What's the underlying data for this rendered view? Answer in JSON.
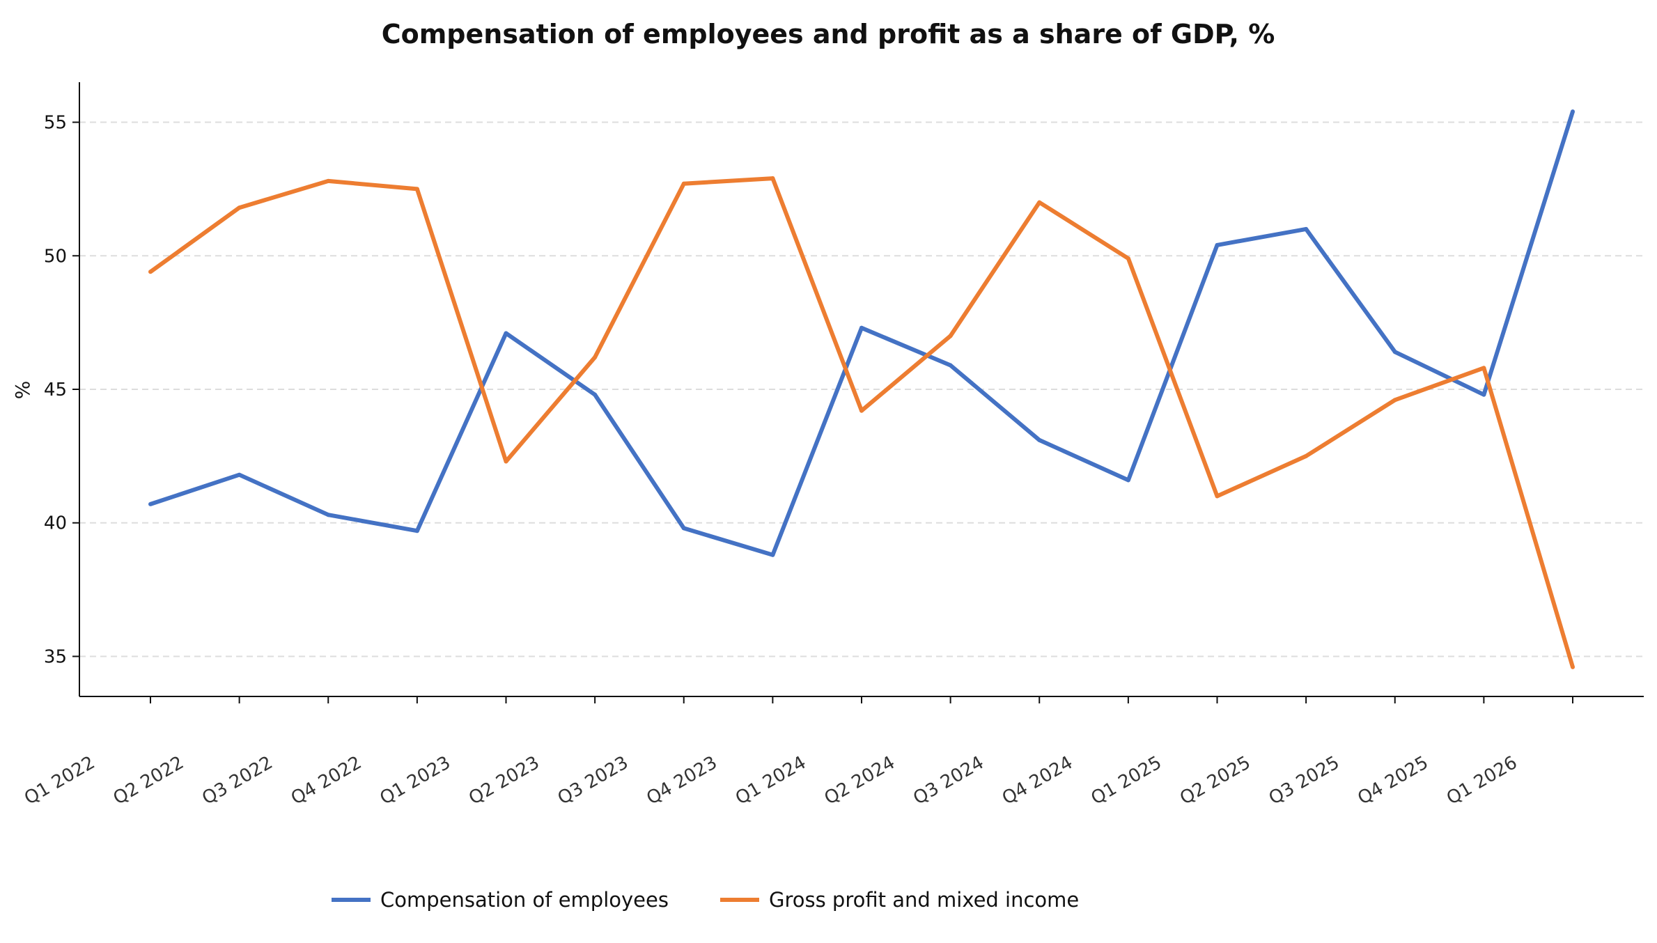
{
  "chart_data": {
    "type": "line",
    "title": "Compensation of employees and profit as a share of GDP, %",
    "xlabel": "",
    "ylabel": "%",
    "categories": [
      "Q1 2022",
      "Q2 2022",
      "Q3 2022",
      "Q4 2022",
      "Q1 2023",
      "Q2 2023",
      "Q3 2023",
      "Q4 2023",
      "Q1 2024",
      "Q2 2024",
      "Q3 2024",
      "Q4 2024",
      "Q1 2025",
      "Q2 2025",
      "Q3 2025",
      "Q4 2025",
      "Q1 2026"
    ],
    "ylim": [
      33.5,
      56.5
    ],
    "yticks": [
      35,
      40,
      45,
      50,
      55
    ],
    "grid": "horizontal dashed",
    "legend_position": "bottom-center",
    "series": [
      {
        "name": "Compensation of employees",
        "color": "#4472c4",
        "values": [
          40.7,
          41.8,
          40.3,
          39.7,
          47.1,
          44.8,
          39.8,
          38.8,
          47.3,
          45.9,
          43.1,
          41.6,
          50.4,
          51.0,
          46.4,
          44.8,
          55.4
        ]
      },
      {
        "name": "Gross profit and mixed income",
        "color": "#ed7d31",
        "values": [
          49.4,
          51.8,
          52.8,
          52.5,
          42.3,
          46.2,
          52.7,
          52.9,
          44.2,
          47.0,
          52.0,
          49.9,
          41.0,
          42.5,
          44.6,
          45.8,
          34.6
        ]
      }
    ]
  }
}
